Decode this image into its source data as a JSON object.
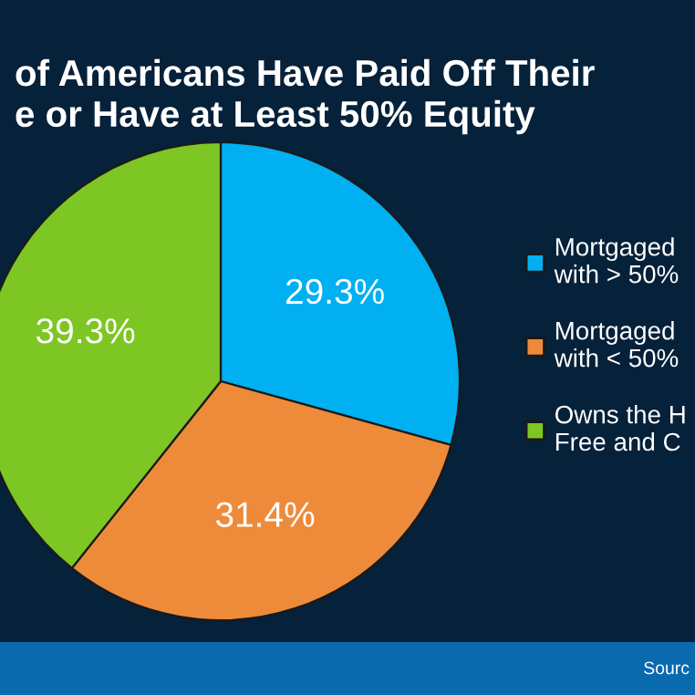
{
  "chart_data": {
    "type": "pie",
    "title": "of Americans Have Paid Off Their\ne or Have at Least 50% Equity",
    "categories": [
      "Mortgaged\nwith > 50%",
      "Mortgaged\nwith < 50%",
      "Owns the H\nFree and C"
    ],
    "values": [
      29.3,
      31.4,
      39.3
    ],
    "colors": [
      "#00b0f0",
      "#ed8b3a",
      "#7dc623"
    ],
    "value_labels": [
      "29.3%",
      "31.4%",
      "39.3%"
    ],
    "legend": "right",
    "annotations": [
      "Sourc"
    ]
  }
}
